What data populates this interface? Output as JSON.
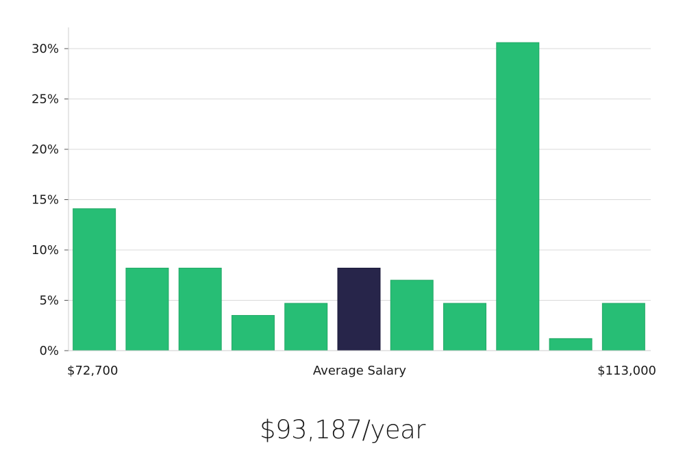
{
  "chart_data": {
    "type": "bar",
    "title": "",
    "xlabel": "Average Salary",
    "ylabel": "",
    "x_range_labels": {
      "min": "$72,700",
      "max": "$113,000"
    },
    "ylim": [
      0,
      32
    ],
    "yticks": [
      0,
      5,
      10,
      15,
      20,
      25,
      30
    ],
    "ytick_labels": [
      "0%",
      "5%",
      "10%",
      "15%",
      "20%",
      "25%",
      "30%"
    ],
    "grid": true,
    "values": [
      14.1,
      8.2,
      8.2,
      3.5,
      4.7,
      8.2,
      7.0,
      4.7,
      30.6,
      1.2,
      4.7
    ],
    "highlight_index": 5,
    "colors": {
      "bar": "#27be75",
      "highlight": "#27254a",
      "grid": "#d9d9d9",
      "axis": "#cccccc"
    }
  },
  "summary": {
    "salary_per_year": "$93,187/year"
  }
}
